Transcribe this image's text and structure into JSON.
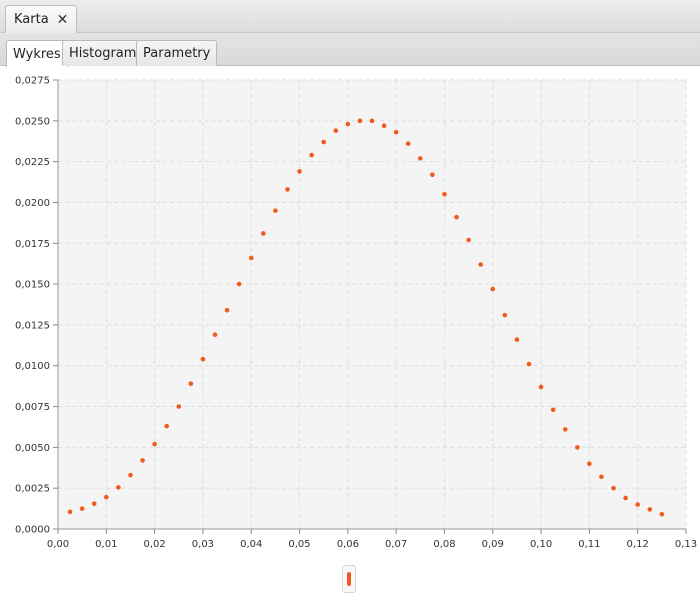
{
  "window": {
    "tab_title": "Karta",
    "close_glyph": "✕"
  },
  "tabs": [
    {
      "label": "Wykres",
      "active": true
    },
    {
      "label": "Histogram",
      "active": false
    },
    {
      "label": "Parametry",
      "active": false
    }
  ],
  "colors": {
    "accent": "#f05a1e",
    "plot_bg": "#f4f4f4",
    "grid": "#dddddd"
  },
  "chart_data": {
    "type": "scatter",
    "title": "",
    "xlabel": "",
    "ylabel": "",
    "xlim": [
      0,
      0.13
    ],
    "ylim": [
      0,
      0.0275
    ],
    "x_ticks": [
      "0,00",
      "0,01",
      "0,02",
      "0,03",
      "0,04",
      "0,05",
      "0,06",
      "0,07",
      "0,08",
      "0,09",
      "0,10",
      "0,11",
      "0,12",
      "0,13"
    ],
    "y_ticks": [
      "0,0000",
      "0,0025",
      "0,0050",
      "0,0075",
      "0,0100",
      "0,0125",
      "0,0150",
      "0,0175",
      "0,0200",
      "0,0225",
      "0,0250",
      "0,0275"
    ],
    "grid": true,
    "legend": "bottom-center",
    "series": [
      {
        "color": "#f05a1e",
        "x": [
          0.0025,
          0.005,
          0.0075,
          0.01,
          0.0125,
          0.015,
          0.0175,
          0.02,
          0.0225,
          0.025,
          0.0275,
          0.03,
          0.0325,
          0.035,
          0.0375,
          0.04,
          0.0425,
          0.045,
          0.0475,
          0.05,
          0.0525,
          0.055,
          0.0575,
          0.06,
          0.0625,
          0.065,
          0.0675,
          0.07,
          0.0725,
          0.075,
          0.0775,
          0.08,
          0.0825,
          0.085,
          0.0875,
          0.09,
          0.0925,
          0.095,
          0.0975,
          0.1,
          0.1025,
          0.105,
          0.1075,
          0.11,
          0.1125,
          0.115,
          0.1175,
          0.12,
          0.1225,
          0.125
        ],
        "y": [
          0.00105,
          0.00125,
          0.00155,
          0.00195,
          0.00255,
          0.0033,
          0.0042,
          0.0052,
          0.0063,
          0.0075,
          0.0089,
          0.0104,
          0.0119,
          0.0134,
          0.015,
          0.0166,
          0.0181,
          0.0195,
          0.0208,
          0.0219,
          0.0229,
          0.0237,
          0.0244,
          0.0248,
          0.025,
          0.025,
          0.0247,
          0.0243,
          0.0236,
          0.0227,
          0.0217,
          0.0205,
          0.0191,
          0.0177,
          0.0162,
          0.0147,
          0.0131,
          0.0116,
          0.0101,
          0.0087,
          0.0073,
          0.0061,
          0.005,
          0.004,
          0.0032,
          0.0025,
          0.0019,
          0.0015,
          0.0012,
          0.0009
        ]
      }
    ]
  }
}
